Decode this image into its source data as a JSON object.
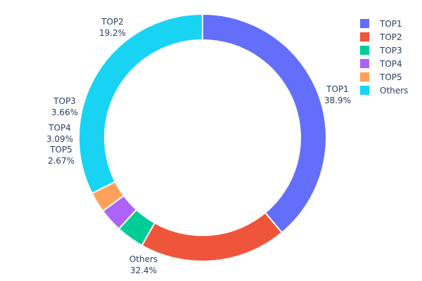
{
  "chart_data": {
    "type": "pie",
    "hole": 0.79,
    "title": "",
    "categories": [
      "TOP1",
      "TOP2",
      "TOP3",
      "TOP4",
      "TOP5",
      "Others"
    ],
    "values": [
      38.9,
      19.2,
      3.66,
      3.09,
      2.67,
      32.4
    ],
    "labels_text": [
      "38.9%",
      "19.2%",
      "3.66%",
      "3.09%",
      "2.67%",
      "32.4%"
    ],
    "colors": [
      "#636efa",
      "#ef553b",
      "#00cc96",
      "#ab63fa",
      "#ffa15a",
      "#19d3f3"
    ],
    "direction": "clockwise",
    "start_angle_deg": 90,
    "legend_position": "top-right",
    "textinfo": "label+percent",
    "textposition": "outside"
  },
  "legend": {
    "items": [
      {
        "label": "TOP1",
        "color": "#636efa"
      },
      {
        "label": "TOP2",
        "color": "#ef553b"
      },
      {
        "label": "TOP3",
        "color": "#00cc96"
      },
      {
        "label": "TOP4",
        "color": "#ab63fa"
      },
      {
        "label": "TOP5",
        "color": "#ffa15a"
      },
      {
        "label": "Others",
        "color": "#19d3f3"
      }
    ]
  }
}
